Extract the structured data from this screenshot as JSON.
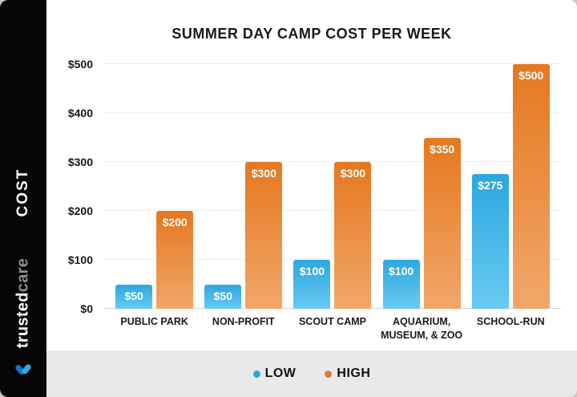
{
  "sidebar": {
    "cost_label": "COST",
    "brand_bold": "trusted",
    "brand_light": "care"
  },
  "chart_data": {
    "type": "bar",
    "title": "SUMMER DAY CAMP COST PER WEEK",
    "categories": [
      "PUBLIC PARK",
      "NON-PROFIT",
      "SCOUT CAMP",
      "AQUARIUM, MUSEUM, & ZOO",
      "SCHOOL-RUN"
    ],
    "series": [
      {
        "name": "LOW",
        "color": "#2BA7E0",
        "values": [
          50,
          50,
          100,
          100,
          275
        ],
        "labels": [
          "$50",
          "$50",
          "$100",
          "$100",
          "$275"
        ]
      },
      {
        "name": "HIGH",
        "color": "#E5781F",
        "values": [
          200,
          300,
          300,
          350,
          500
        ],
        "labels": [
          "$200",
          "$300",
          "$300",
          "$350",
          "$500"
        ]
      }
    ],
    "y_ticks": [
      {
        "value": 0,
        "label": "$0"
      },
      {
        "value": 100,
        "label": "$100"
      },
      {
        "value": 200,
        "label": "$200"
      },
      {
        "value": 300,
        "label": "$300"
      },
      {
        "value": 400,
        "label": "$400"
      },
      {
        "value": 500,
        "label": "$500"
      }
    ],
    "ylim": [
      0,
      500
    ],
    "ylabel": "COST",
    "grid": true,
    "legend_position": "bottom"
  },
  "legend": {
    "items": [
      {
        "label": "LOW",
        "color": "#2BA7E0"
      },
      {
        "label": "HIGH",
        "color": "#E07A2E"
      }
    ]
  },
  "colors": {
    "bar_low_top": "#2BA7E0",
    "bar_low_bottom": "#68CAF1",
    "bar_high_top": "#E5781F",
    "bar_high_bottom": "#F1A76A",
    "sidebar_bg": "#060606",
    "legend_band_bg": "#E9E9E9",
    "heart_dark_blue": "#1B6FB8",
    "heart_light_blue": "#2BA9E2"
  }
}
